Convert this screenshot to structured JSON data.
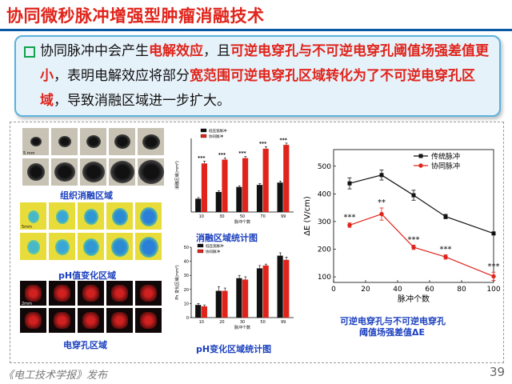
{
  "title": "协同微秒脉冲增强型肿瘤消融技术",
  "bullet": {
    "segments": [
      {
        "text": "协同脉冲中会产生",
        "style": "normal"
      },
      {
        "text": "电解效应",
        "style": "red"
      },
      {
        "text": "，且",
        "style": "normal"
      },
      {
        "text": "可逆电穿孔与不可逆电穿孔阈值场强差值更小",
        "style": "red"
      },
      {
        "text": "，表明电解效应将部分",
        "style": "normal"
      },
      {
        "text": "宽范围可逆电穿孔区域转化为了不可逆电穿孔区域",
        "style": "red"
      },
      {
        "text": "，导致消融区域进一步扩大。",
        "style": "normal"
      }
    ]
  },
  "figure": {
    "photo_captions": {
      "ablation": "组织消融区域",
      "ph": "pH值变化区域",
      "electroporation": "电穿孔区域"
    },
    "scale_labels": {
      "ablation": "5 mm",
      "ph": "5mm",
      "ep": "2mm"
    },
    "bar_captions": {
      "ablation": "消融区域统计图",
      "ph": "pH变化区域统计图"
    },
    "line_caption": [
      "可逆电穿孔与不可逆电穿孔",
      "阈值场强差值ΔE"
    ]
  },
  "chart_data": [
    {
      "type": "bar",
      "name": "ablation-stats",
      "categories": [
        "10",
        "30",
        "50",
        "70",
        "99"
      ],
      "xlabel": "脉冲个数",
      "ylabel": "消融区域(mm²)",
      "series": [
        {
          "name": "低压宽脉冲",
          "color": "#111111",
          "values": [
            45,
            68,
            85,
            92,
            100
          ],
          "errors": [
            4,
            4,
            4,
            5,
            5
          ]
        },
        {
          "name": "协同脉冲",
          "color": "#e0241b",
          "values": [
            165,
            178,
            183,
            215,
            228
          ],
          "errors": [
            8,
            6,
            6,
            7,
            6
          ]
        }
      ],
      "annotations": [
        "***",
        "***",
        "***",
        "***",
        "***"
      ],
      "ylim": [
        0,
        250
      ]
    },
    {
      "type": "bar",
      "name": "ph-stats",
      "categories": [
        "10",
        "20",
        "30",
        "50",
        "99"
      ],
      "xlabel": "脉冲个数",
      "ylabel": "Ph 变化区域(mm²)",
      "series": [
        {
          "name": "低压宽脉冲",
          "color": "#111111",
          "values": [
            9,
            19,
            28,
            35,
            44
          ],
          "errors": [
            1,
            3,
            2,
            2,
            2
          ]
        },
        {
          "name": "协同脉冲",
          "color": "#e0241b",
          "values": [
            8,
            19,
            27,
            37,
            41
          ],
          "errors": [
            1,
            2,
            2,
            1,
            2
          ]
        }
      ],
      "ylim": [
        0,
        50
      ],
      "yticks": [
        0,
        10,
        20,
        30,
        40,
        50
      ]
    },
    {
      "type": "line",
      "name": "delta-e",
      "x": [
        10,
        30,
        50,
        70,
        100
      ],
      "xlabel": "脉冲个数",
      "ylabel": "ΔE (V/cm)",
      "xlim": [
        0,
        100
      ],
      "ylim": [
        80,
        560
      ],
      "xticks": [
        0,
        20,
        40,
        60,
        80,
        100
      ],
      "yticks": [
        100,
        200,
        300,
        400,
        500
      ],
      "series": [
        {
          "name": "传统脉冲",
          "color": "#111111",
          "marker": "square",
          "values": [
            438,
            468,
            395,
            318,
            257
          ],
          "errors": [
            20,
            18,
            18,
            8,
            5
          ]
        },
        {
          "name": "协同脉冲",
          "color": "#e0241b",
          "marker": "circle",
          "values": [
            287,
            327,
            207,
            172,
            102
          ],
          "errors": [
            8,
            22,
            8,
            8,
            15
          ]
        }
      ],
      "annotations": [
        {
          "x": 10,
          "text": "***"
        },
        {
          "x": 30,
          "text": "**"
        },
        {
          "x": 50,
          "text": "***"
        },
        {
          "x": 70,
          "text": "***"
        },
        {
          "x": 100,
          "text": "***"
        }
      ]
    }
  ],
  "footer": "《电工技术学报》发布",
  "page_number": "39"
}
